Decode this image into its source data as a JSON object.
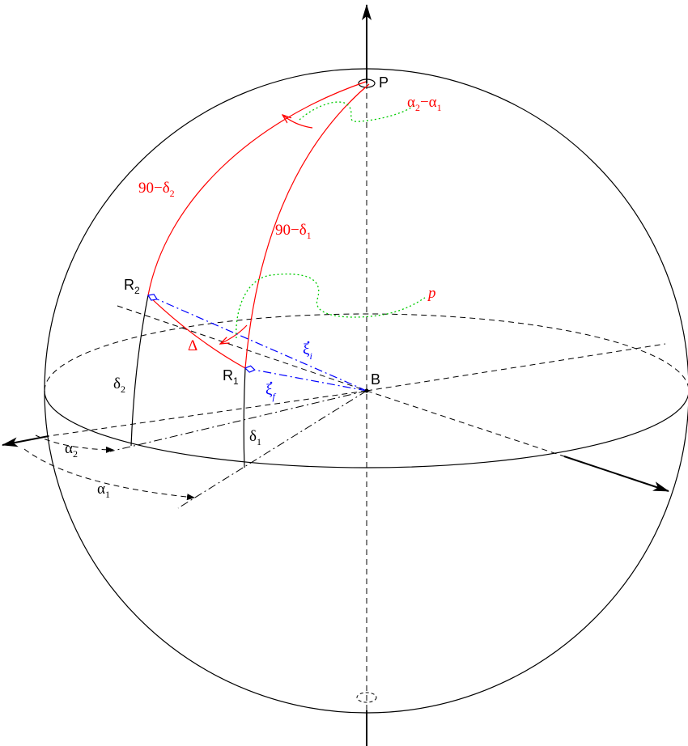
{
  "colors": {
    "ink": "#000000",
    "arc": "#ff0000",
    "vector": "#0000ff",
    "path": "#00cc00"
  },
  "labels": {
    "pole": "P",
    "center": "B",
    "r1": {
      "base": "R",
      "sub": "1"
    },
    "r2": {
      "base": "R",
      "sub": "2"
    },
    "colat1": {
      "base": "90−δ",
      "sub": "1"
    },
    "colat2": {
      "base": "90−δ",
      "sub": "2"
    },
    "ra_diff": {
      "a": "α",
      "a_sub": "2",
      "dash": "−α",
      "b_sub": "1"
    },
    "delta1": {
      "base": "δ",
      "sub": "1"
    },
    "delta2": {
      "base": "δ",
      "sub": "2"
    },
    "alpha1": {
      "base": "α",
      "sub": "1"
    },
    "alpha2": {
      "base": "α",
      "sub": "2"
    },
    "separation": "Δ",
    "xi_i": {
      "base": "ξ",
      "sub": "i"
    },
    "xi_f": {
      "base": "ξ",
      "sub": "f"
    },
    "p": "p"
  }
}
